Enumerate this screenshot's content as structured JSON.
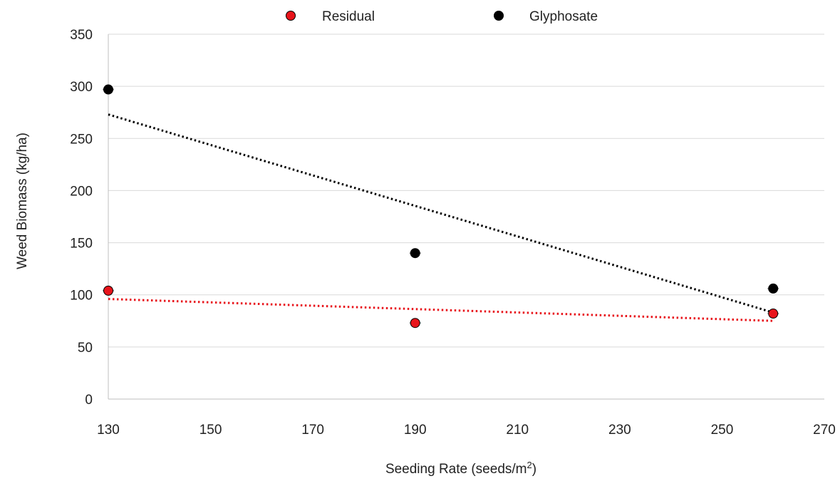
{
  "chart_data": {
    "type": "scatter",
    "title": "",
    "xlabel": "Seeding Rate (seeds/m",
    "xlabel_superscript": "2",
    "xlabel_suffix": ")",
    "ylabel": "Weed Biomass (kg/ha)",
    "xlim": [
      130,
      270
    ],
    "ylim": [
      0,
      350
    ],
    "x_ticks": [
      130,
      150,
      170,
      190,
      210,
      230,
      250,
      270
    ],
    "y_ticks": [
      0,
      50,
      100,
      150,
      200,
      250,
      300,
      350
    ],
    "grid": "horizontal",
    "legend_position": "top",
    "series": [
      {
        "name": "Residual",
        "color": "#e8141b",
        "marker": "circle",
        "points": [
          {
            "x": 130,
            "y": 104
          },
          {
            "x": 190,
            "y": 73
          },
          {
            "x": 260,
            "y": 82
          }
        ],
        "trendline": {
          "style": "dotted",
          "x": [
            130,
            260
          ],
          "y": [
            96,
            75
          ]
        }
      },
      {
        "name": "Glyphosate",
        "color": "#000000",
        "marker": "circle",
        "points": [
          {
            "x": 130,
            "y": 297
          },
          {
            "x": 190,
            "y": 140
          },
          {
            "x": 260,
            "y": 106
          }
        ],
        "trendline": {
          "style": "dotted",
          "x": [
            130,
            260
          ],
          "y": [
            273,
            83
          ]
        }
      }
    ]
  }
}
